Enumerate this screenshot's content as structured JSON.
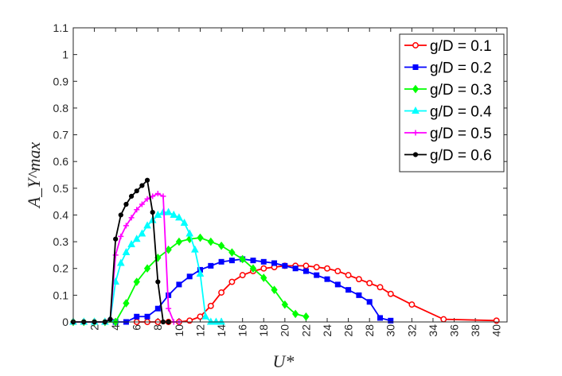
{
  "chart_data": {
    "type": "line",
    "title": "",
    "xlabel": "U*",
    "ylabel": "A_Y^max",
    "xlim": [
      0,
      41
    ],
    "ylim": [
      0,
      1.1
    ],
    "xticks": [
      2,
      4,
      6,
      8,
      10,
      12,
      14,
      16,
      18,
      20,
      22,
      24,
      26,
      28,
      30,
      32,
      34,
      36,
      38,
      40
    ],
    "xtick_labels": [
      "2",
      "4",
      "6",
      "8",
      "10",
      "12",
      "14",
      "16",
      "18",
      "20",
      "22",
      "24",
      "26",
      "28",
      "30",
      "32",
      "34",
      "36",
      "38",
      "40"
    ],
    "yticks": [
      0,
      0.1,
      0.2,
      0.3,
      0.4,
      0.5,
      0.6,
      0.7,
      0.8,
      0.9,
      1,
      1.1
    ],
    "ytick_labels": [
      "0",
      "0.1",
      "0.2",
      "0.3",
      "0.4",
      "0.5",
      "0.6",
      "0.7",
      "0.8",
      "0.9",
      "1",
      "1.1"
    ],
    "grid": false,
    "legend_position": "top-right",
    "series": [
      {
        "name": "g/D = 0.1",
        "color": "#ff0000",
        "marker": "circle",
        "x": [
          6,
          7,
          8,
          9,
          10,
          11,
          12,
          13,
          14,
          15,
          16,
          17,
          18,
          19,
          20,
          21,
          22,
          23,
          24,
          25,
          26,
          27,
          28,
          29,
          30,
          32,
          35,
          40
        ],
        "y": [
          0,
          0,
          0,
          0,
          0,
          0.005,
          0.02,
          0.06,
          0.11,
          0.15,
          0.175,
          0.19,
          0.2,
          0.205,
          0.21,
          0.21,
          0.21,
          0.205,
          0.2,
          0.19,
          0.175,
          0.16,
          0.145,
          0.13,
          0.105,
          0.065,
          0.01,
          0.005
        ]
      },
      {
        "name": "g/D = 0.2",
        "color": "#0000ff",
        "marker": "square",
        "x": [
          4,
          5,
          6,
          7,
          8,
          9,
          10,
          11,
          12,
          13,
          14,
          15,
          16,
          17,
          18,
          19,
          20,
          21,
          22,
          23,
          24,
          25,
          26,
          27,
          28,
          29,
          30
        ],
        "y": [
          0,
          0,
          0.02,
          0.02,
          0.05,
          0.1,
          0.14,
          0.17,
          0.195,
          0.21,
          0.225,
          0.23,
          0.235,
          0.23,
          0.225,
          0.22,
          0.21,
          0.2,
          0.19,
          0.175,
          0.16,
          0.14,
          0.12,
          0.1,
          0.075,
          0.015,
          0.005
        ]
      },
      {
        "name": "g/D = 0.3",
        "color": "#00ff00",
        "marker": "diamond",
        "x": [
          0,
          1,
          2,
          3,
          4,
          5,
          6,
          7,
          8,
          9,
          10,
          11,
          12,
          13,
          14,
          15,
          16,
          17,
          18,
          19,
          20,
          21,
          22
        ],
        "y": [
          0,
          0,
          0,
          0,
          0,
          0.07,
          0.15,
          0.2,
          0.24,
          0.27,
          0.3,
          0.31,
          0.315,
          0.3,
          0.285,
          0.26,
          0.235,
          0.2,
          0.165,
          0.12,
          0.065,
          0.03,
          0.02
        ]
      },
      {
        "name": "g/D = 0.4",
        "color": "#00ffff",
        "marker": "triangle",
        "x": [
          0,
          1,
          2,
          3,
          3.5,
          4,
          4.5,
          5,
          5.5,
          6,
          6.5,
          7,
          7.5,
          8,
          8.5,
          9,
          9.5,
          10,
          10.5,
          11,
          11.5,
          12,
          12.5,
          13,
          13.5,
          14
        ],
        "y": [
          0,
          0,
          0,
          0,
          0.01,
          0.15,
          0.22,
          0.26,
          0.29,
          0.31,
          0.33,
          0.36,
          0.38,
          0.4,
          0.41,
          0.41,
          0.4,
          0.39,
          0.37,
          0.33,
          0.27,
          0.18,
          0.02,
          0,
          0,
          0
        ]
      },
      {
        "name": "g/D = 0.5",
        "color": "#ff00ff",
        "marker": "plus",
        "x": [
          0,
          1,
          2,
          3,
          3.5,
          4,
          4.5,
          5,
          5.5,
          6,
          6.5,
          7,
          7.5,
          8,
          8.5,
          9,
          9.5,
          10
        ],
        "y": [
          0,
          0,
          0,
          0,
          0.01,
          0.25,
          0.32,
          0.36,
          0.39,
          0.42,
          0.44,
          0.46,
          0.47,
          0.48,
          0.47,
          0.05,
          0,
          0
        ]
      },
      {
        "name": "g/D = 0.6",
        "color": "#000000",
        "marker": "dot",
        "x": [
          0,
          1,
          2,
          3,
          3.5,
          4,
          4.5,
          5,
          5.5,
          6,
          6.5,
          7,
          7.5,
          8,
          8.5,
          9
        ],
        "y": [
          0,
          0,
          0,
          0,
          0.01,
          0.31,
          0.4,
          0.44,
          0.47,
          0.49,
          0.51,
          0.53,
          0.41,
          0.15,
          0,
          0
        ]
      }
    ]
  }
}
